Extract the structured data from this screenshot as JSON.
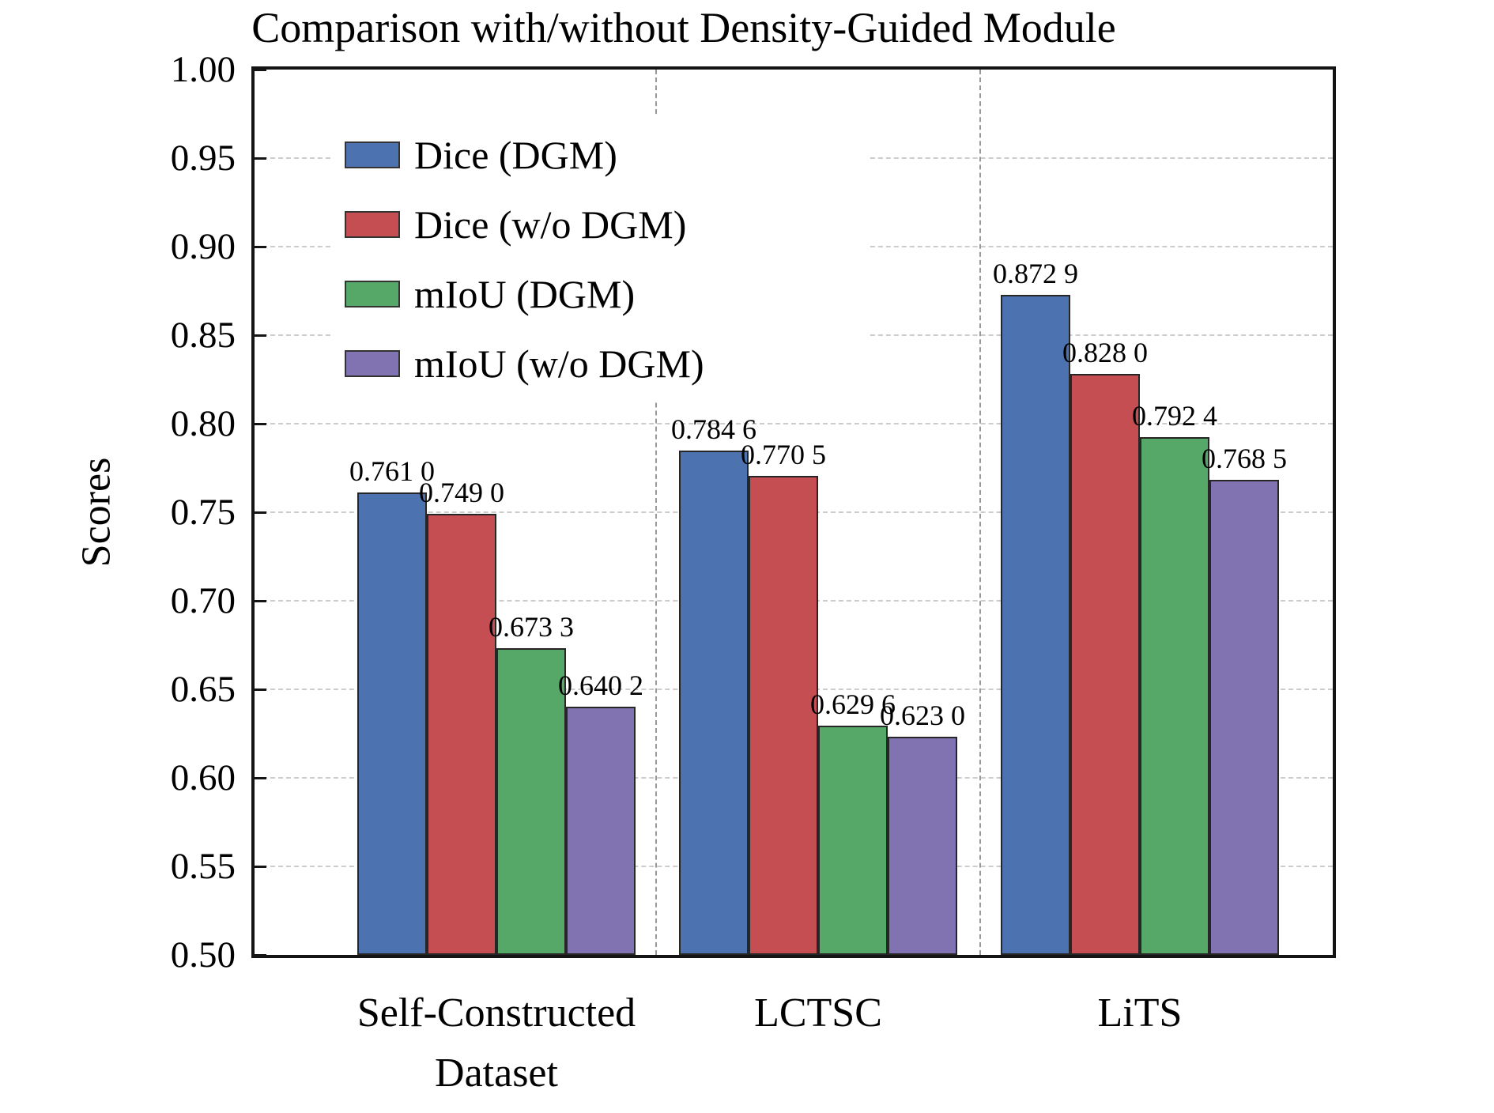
{
  "figure": {
    "title": "Comparison with/without Density-Guided Module",
    "y_axis_label": "Scores"
  },
  "chart_data": {
    "type": "bar",
    "title": "Comparison with/without Density-Guided Module",
    "xlabel": "",
    "ylabel": "Scores",
    "categories": [
      "Self-Constructed\nDataset",
      "LCTSC",
      "LiTS"
    ],
    "series": [
      {
        "name": "Dice (DGM)",
        "color": "#4C72B0",
        "values": [
          0.761,
          0.7846,
          0.8729
        ],
        "value_labels": [
          "0.761 0",
          "0.784 6",
          "0.872 9"
        ]
      },
      {
        "name": "Dice (w/o DGM)",
        "color": "#C44E52",
        "values": [
          0.749,
          0.7705,
          0.828
        ],
        "value_labels": [
          "0.749 0",
          "0.770 5",
          "0.828 0"
        ]
      },
      {
        "name": "mIoU (DGM)",
        "color": "#55A868",
        "values": [
          0.6733,
          0.6296,
          0.7924
        ],
        "value_labels": [
          "0.673 3",
          "0.629 6",
          "0.792 4"
        ]
      },
      {
        "name": "mIoU (w/o DGM)",
        "color": "#8172B2",
        "values": [
          0.6402,
          0.623,
          0.7685
        ],
        "value_labels": [
          "0.640 2",
          "0.623 0",
          "0.768 5"
        ]
      }
    ],
    "ylim": [
      0.5,
      1.0
    ],
    "yticks": [
      "0.50",
      "0.55",
      "0.60",
      "0.65",
      "0.70",
      "0.75",
      "0.80",
      "0.85",
      "0.90",
      "0.95",
      "1.00"
    ],
    "grid": true,
    "grid_style": "dashed",
    "legend_position": "upper left",
    "bar_edge_color": "#262626"
  }
}
